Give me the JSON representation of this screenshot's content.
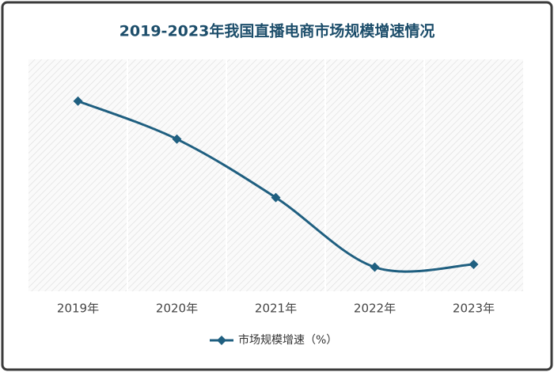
{
  "chart_data": {
    "type": "line",
    "title": "2019-2023年我国直播电商市场规模增速情况",
    "categories": [
      "2019年",
      "2020年",
      "2021年",
      "2022年",
      "2023年"
    ],
    "series": [
      {
        "name": "市场规模增速（%）",
        "color": "#1f5f80",
        "values": [
          205,
          164,
          101,
          26,
          29
        ]
      }
    ],
    "ylim": [
      0,
      250
    ],
    "smooth": true,
    "legend": "bottom"
  }
}
